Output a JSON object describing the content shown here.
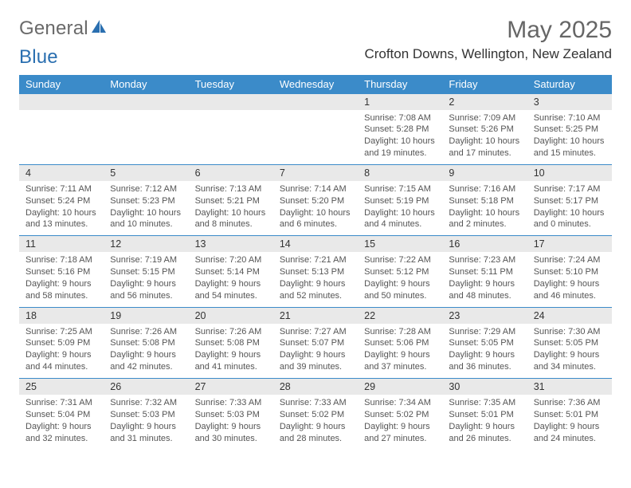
{
  "logo": {
    "word1": "General",
    "word2": "Blue"
  },
  "title": "May 2025",
  "location": "Crofton Downs, Wellington, New Zealand",
  "style": {
    "header_bg": "#3b8bc9",
    "row_grey": "#e9e9e9",
    "divider": "#3b8bc9",
    "page_bg": "#ffffff"
  },
  "day_names": [
    "Sunday",
    "Monday",
    "Tuesday",
    "Wednesday",
    "Thursday",
    "Friday",
    "Saturday"
  ],
  "weeks": [
    [
      {
        "empty": true
      },
      {
        "empty": true
      },
      {
        "empty": true
      },
      {
        "empty": true
      },
      {
        "n": "1",
        "sunrise": "Sunrise: 7:08 AM",
        "sunset": "Sunset: 5:28 PM",
        "daylight": "Daylight: 10 hours and 19 minutes."
      },
      {
        "n": "2",
        "sunrise": "Sunrise: 7:09 AM",
        "sunset": "Sunset: 5:26 PM",
        "daylight": "Daylight: 10 hours and 17 minutes."
      },
      {
        "n": "3",
        "sunrise": "Sunrise: 7:10 AM",
        "sunset": "Sunset: 5:25 PM",
        "daylight": "Daylight: 10 hours and 15 minutes."
      }
    ],
    [
      {
        "n": "4",
        "sunrise": "Sunrise: 7:11 AM",
        "sunset": "Sunset: 5:24 PM",
        "daylight": "Daylight: 10 hours and 13 minutes."
      },
      {
        "n": "5",
        "sunrise": "Sunrise: 7:12 AM",
        "sunset": "Sunset: 5:23 PM",
        "daylight": "Daylight: 10 hours and 10 minutes."
      },
      {
        "n": "6",
        "sunrise": "Sunrise: 7:13 AM",
        "sunset": "Sunset: 5:21 PM",
        "daylight": "Daylight: 10 hours and 8 minutes."
      },
      {
        "n": "7",
        "sunrise": "Sunrise: 7:14 AM",
        "sunset": "Sunset: 5:20 PM",
        "daylight": "Daylight: 10 hours and 6 minutes."
      },
      {
        "n": "8",
        "sunrise": "Sunrise: 7:15 AM",
        "sunset": "Sunset: 5:19 PM",
        "daylight": "Daylight: 10 hours and 4 minutes."
      },
      {
        "n": "9",
        "sunrise": "Sunrise: 7:16 AM",
        "sunset": "Sunset: 5:18 PM",
        "daylight": "Daylight: 10 hours and 2 minutes."
      },
      {
        "n": "10",
        "sunrise": "Sunrise: 7:17 AM",
        "sunset": "Sunset: 5:17 PM",
        "daylight": "Daylight: 10 hours and 0 minutes."
      }
    ],
    [
      {
        "n": "11",
        "sunrise": "Sunrise: 7:18 AM",
        "sunset": "Sunset: 5:16 PM",
        "daylight": "Daylight: 9 hours and 58 minutes."
      },
      {
        "n": "12",
        "sunrise": "Sunrise: 7:19 AM",
        "sunset": "Sunset: 5:15 PM",
        "daylight": "Daylight: 9 hours and 56 minutes."
      },
      {
        "n": "13",
        "sunrise": "Sunrise: 7:20 AM",
        "sunset": "Sunset: 5:14 PM",
        "daylight": "Daylight: 9 hours and 54 minutes."
      },
      {
        "n": "14",
        "sunrise": "Sunrise: 7:21 AM",
        "sunset": "Sunset: 5:13 PM",
        "daylight": "Daylight: 9 hours and 52 minutes."
      },
      {
        "n": "15",
        "sunrise": "Sunrise: 7:22 AM",
        "sunset": "Sunset: 5:12 PM",
        "daylight": "Daylight: 9 hours and 50 minutes."
      },
      {
        "n": "16",
        "sunrise": "Sunrise: 7:23 AM",
        "sunset": "Sunset: 5:11 PM",
        "daylight": "Daylight: 9 hours and 48 minutes."
      },
      {
        "n": "17",
        "sunrise": "Sunrise: 7:24 AM",
        "sunset": "Sunset: 5:10 PM",
        "daylight": "Daylight: 9 hours and 46 minutes."
      }
    ],
    [
      {
        "n": "18",
        "sunrise": "Sunrise: 7:25 AM",
        "sunset": "Sunset: 5:09 PM",
        "daylight": "Daylight: 9 hours and 44 minutes."
      },
      {
        "n": "19",
        "sunrise": "Sunrise: 7:26 AM",
        "sunset": "Sunset: 5:08 PM",
        "daylight": "Daylight: 9 hours and 42 minutes."
      },
      {
        "n": "20",
        "sunrise": "Sunrise: 7:26 AM",
        "sunset": "Sunset: 5:08 PM",
        "daylight": "Daylight: 9 hours and 41 minutes."
      },
      {
        "n": "21",
        "sunrise": "Sunrise: 7:27 AM",
        "sunset": "Sunset: 5:07 PM",
        "daylight": "Daylight: 9 hours and 39 minutes."
      },
      {
        "n": "22",
        "sunrise": "Sunrise: 7:28 AM",
        "sunset": "Sunset: 5:06 PM",
        "daylight": "Daylight: 9 hours and 37 minutes."
      },
      {
        "n": "23",
        "sunrise": "Sunrise: 7:29 AM",
        "sunset": "Sunset: 5:05 PM",
        "daylight": "Daylight: 9 hours and 36 minutes."
      },
      {
        "n": "24",
        "sunrise": "Sunrise: 7:30 AM",
        "sunset": "Sunset: 5:05 PM",
        "daylight": "Daylight: 9 hours and 34 minutes."
      }
    ],
    [
      {
        "n": "25",
        "sunrise": "Sunrise: 7:31 AM",
        "sunset": "Sunset: 5:04 PM",
        "daylight": "Daylight: 9 hours and 32 minutes."
      },
      {
        "n": "26",
        "sunrise": "Sunrise: 7:32 AM",
        "sunset": "Sunset: 5:03 PM",
        "daylight": "Daylight: 9 hours and 31 minutes."
      },
      {
        "n": "27",
        "sunrise": "Sunrise: 7:33 AM",
        "sunset": "Sunset: 5:03 PM",
        "daylight": "Daylight: 9 hours and 30 minutes."
      },
      {
        "n": "28",
        "sunrise": "Sunrise: 7:33 AM",
        "sunset": "Sunset: 5:02 PM",
        "daylight": "Daylight: 9 hours and 28 minutes."
      },
      {
        "n": "29",
        "sunrise": "Sunrise: 7:34 AM",
        "sunset": "Sunset: 5:02 PM",
        "daylight": "Daylight: 9 hours and 27 minutes."
      },
      {
        "n": "30",
        "sunrise": "Sunrise: 7:35 AM",
        "sunset": "Sunset: 5:01 PM",
        "daylight": "Daylight: 9 hours and 26 minutes."
      },
      {
        "n": "31",
        "sunrise": "Sunrise: 7:36 AM",
        "sunset": "Sunset: 5:01 PM",
        "daylight": "Daylight: 9 hours and 24 minutes."
      }
    ]
  ]
}
